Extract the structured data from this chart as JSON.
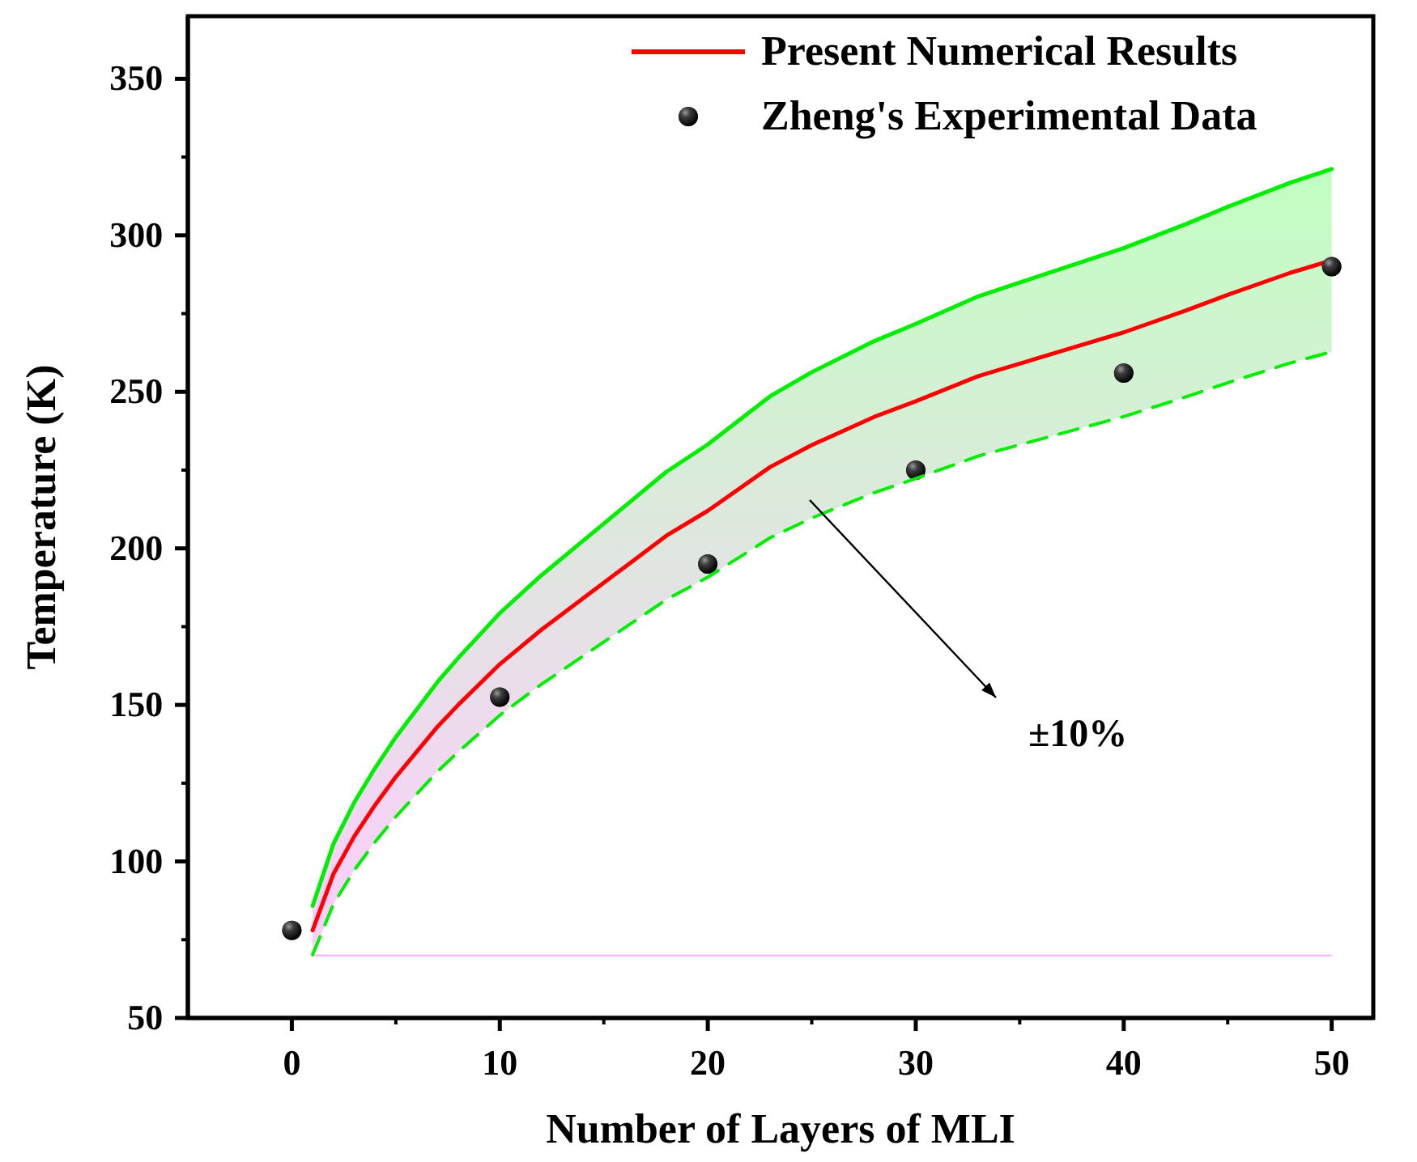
{
  "chart_data": {
    "type": "line",
    "xlabel": "Number of Layers of MLI",
    "ylabel": "Temperature (K)",
    "xlim": [
      -5,
      52
    ],
    "ylim": [
      50,
      370
    ],
    "xticks": [
      0,
      10,
      20,
      30,
      40,
      50
    ],
    "yticks": [
      50,
      100,
      150,
      200,
      250,
      300,
      350
    ],
    "legend": "top right",
    "series": [
      {
        "name": "Present Numerical Results",
        "color": "#ff0000",
        "line_style": "solid",
        "x": [
          1,
          2,
          3,
          4,
          5,
          6,
          7,
          8,
          10,
          12,
          14,
          16,
          18,
          20,
          23,
          25,
          28,
          30,
          33,
          35,
          38,
          40,
          43,
          45,
          48,
          50
        ],
        "values": [
          78,
          96,
          108,
          118,
          127,
          135,
          143,
          150,
          163,
          174,
          184,
          194,
          204,
          212,
          226,
          233,
          242,
          247,
          255,
          259,
          265,
          269,
          276,
          281,
          288,
          292
        ],
        "lower": [
          70.2,
          86.4,
          97.2,
          106.2,
          114.3,
          121.5,
          128.7,
          135,
          146.7,
          156.6,
          165.6,
          174.6,
          183.6,
          190.8,
          203.4,
          209.7,
          217.8,
          222.3,
          229.5,
          233.1,
          238.5,
          242.1,
          248.4,
          252.9,
          259.2,
          262.8
        ],
        "upper": [
          85.8,
          105.6,
          118.8,
          129.8,
          139.7,
          148.5,
          157.3,
          165,
          179.3,
          191.4,
          202.4,
          213.4,
          224.4,
          233.2,
          248.6,
          256.3,
          266.2,
          271.7,
          280.5,
          284.9,
          291.5,
          295.9,
          303.6,
          309.1,
          316.8,
          321.2
        ]
      },
      {
        "name": "Zheng's Experimental Data",
        "type": "scatter",
        "color": "#000000",
        "marker": "circle",
        "x": [
          0,
          10,
          20,
          30,
          40,
          50
        ],
        "values": [
          78,
          152.5,
          195,
          225,
          256,
          290
        ]
      },
      {
        "type": "line",
        "color": "#00ee00",
        "line_style": "solid",
        "x": [
          1,
          2,
          3,
          4,
          5,
          6,
          7,
          8,
          10,
          12,
          14,
          16,
          18,
          20,
          23,
          25,
          28,
          30,
          33,
          35,
          38,
          40,
          43,
          45,
          48,
          50
        ],
        "values": [
          85.8,
          105.6,
          118.8,
          129.8,
          139.7,
          148.5,
          157.3,
          165,
          179.3,
          191.4,
          202.4,
          213.4,
          224.4,
          233.2,
          248.6,
          256.3,
          266.2,
          271.7,
          280.5,
          284.9,
          291.5,
          295.9,
          303.6,
          309.1,
          316.8,
          321.2
        ]
      },
      {
        "type": "line",
        "color": "#00ee00",
        "line_style": "dashed",
        "x": [
          1,
          2,
          3,
          4,
          5,
          6,
          7,
          8,
          10,
          12,
          14,
          16,
          18,
          20,
          23,
          25,
          28,
          30,
          33,
          35,
          38,
          40,
          43,
          45,
          48,
          50
        ],
        "values": [
          70.2,
          86.4,
          97.2,
          106.2,
          114.3,
          121.5,
          128.7,
          135,
          146.7,
          156.6,
          165.6,
          174.6,
          183.6,
          190.8,
          203.4,
          209.7,
          217.8,
          222.3,
          229.5,
          233.1,
          238.5,
          242.1,
          248.4,
          252.9,
          259.2,
          262.8
        ]
      }
    ],
    "ref_lines": [
      {
        "axis": "y",
        "value": 70,
        "color": "#ffaaff",
        "line_style": "solid"
      }
    ],
    "annotations": [
      "±10%"
    ]
  }
}
